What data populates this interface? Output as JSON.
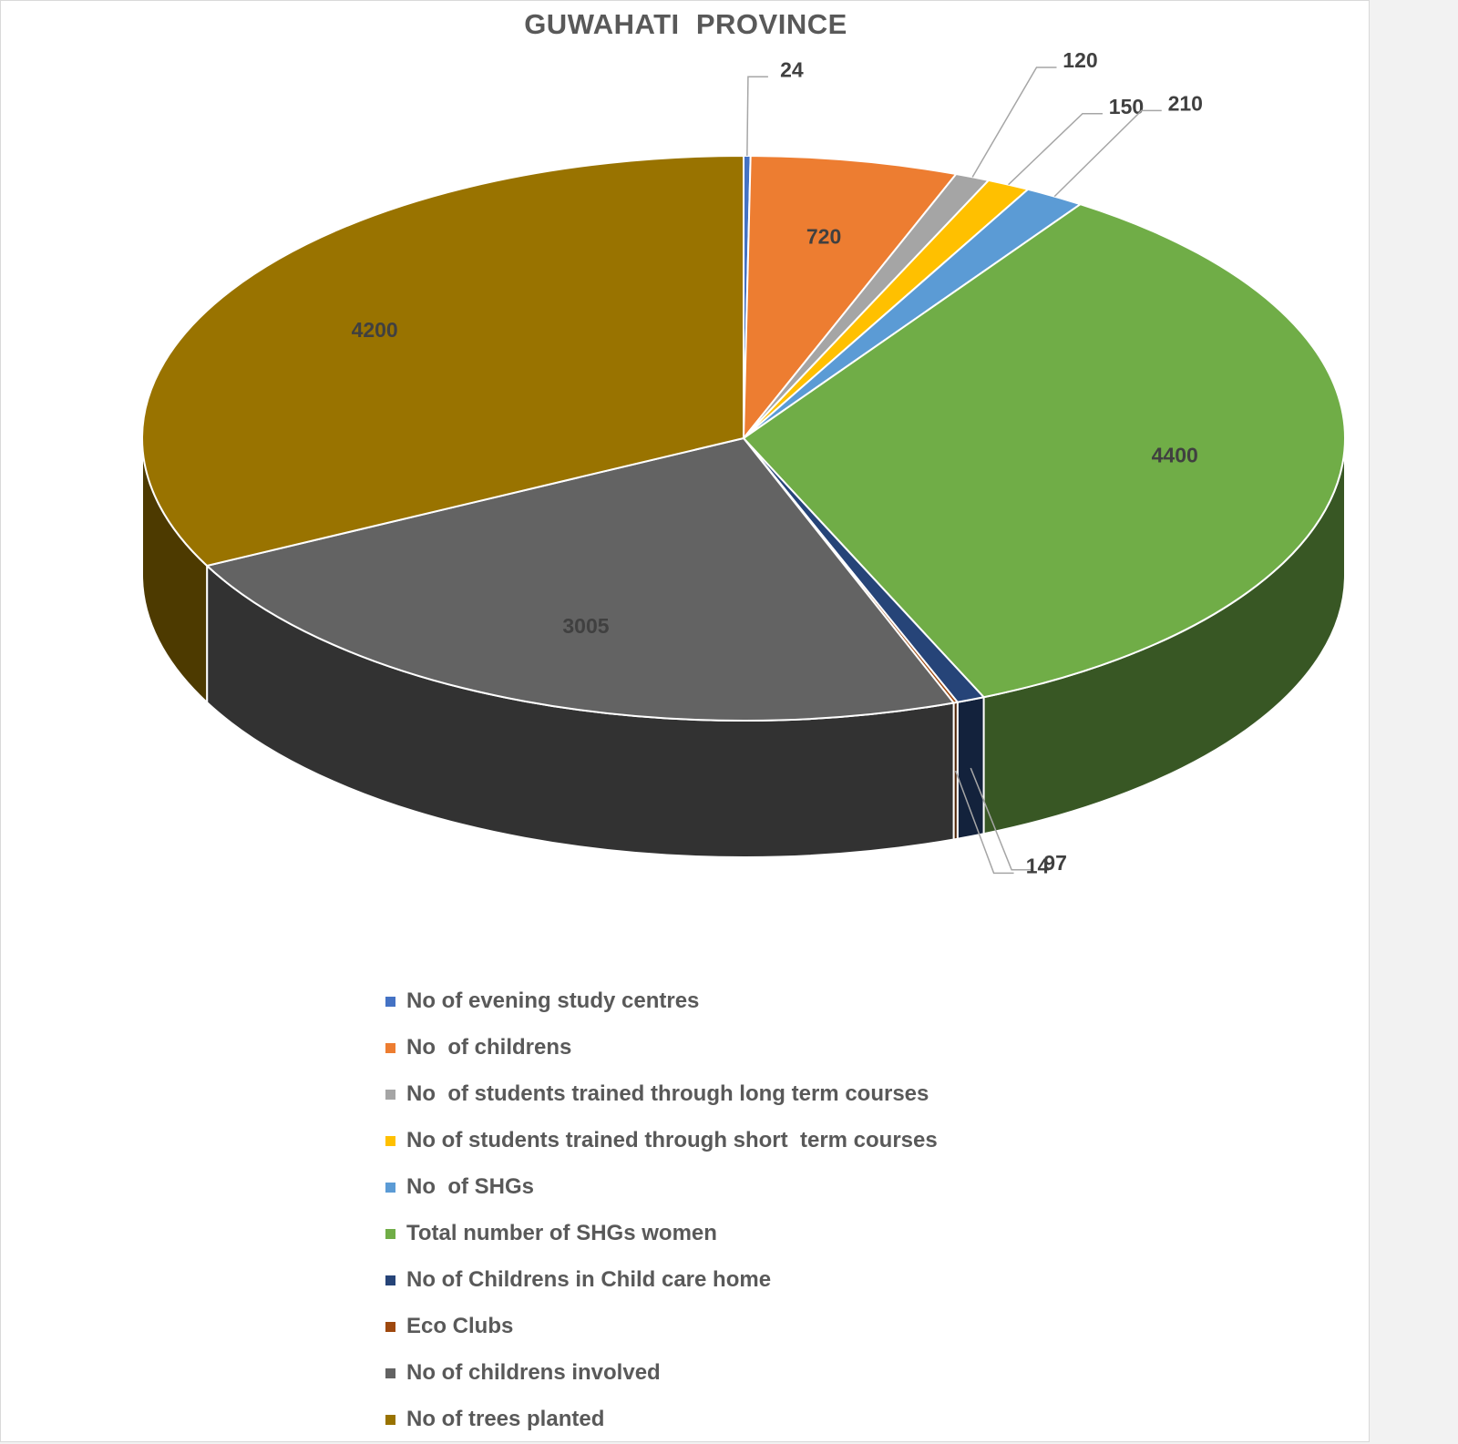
{
  "chart_data": {
    "type": "pie",
    "title": "GUWAHATI  PROVINCE",
    "legend_position": "bottom",
    "slices": [
      {
        "label": "No of evening study centres",
        "value": 24,
        "color": "#4472c4"
      },
      {
        "label": "No  of childrens",
        "value": 720,
        "color": "#ed7d31"
      },
      {
        "label": "No  of students trained through long term courses",
        "value": 120,
        "color": "#a5a5a5"
      },
      {
        "label": "No of students trained through short  term courses",
        "value": 150,
        "color": "#ffc000"
      },
      {
        "label": "No  of SHGs",
        "value": 210,
        "color": "#5b9bd5"
      },
      {
        "label": "Total number of SHGs women",
        "value": 4400,
        "color": "#70ad47"
      },
      {
        "label": "No of Childrens in Child care home",
        "value": 97,
        "color": "#264478"
      },
      {
        "label": "Eco Clubs",
        "value": 14,
        "color": "#9e480e"
      },
      {
        "label": "No of childrens involved",
        "value": 3005,
        "color": "#636363"
      },
      {
        "label": "No of trees planted",
        "value": 4200,
        "color": "#997300"
      }
    ],
    "data_labels": [
      "24",
      "720",
      "120",
      "150",
      "210",
      "4400",
      "97",
      "14",
      "3005",
      "4200"
    ]
  }
}
